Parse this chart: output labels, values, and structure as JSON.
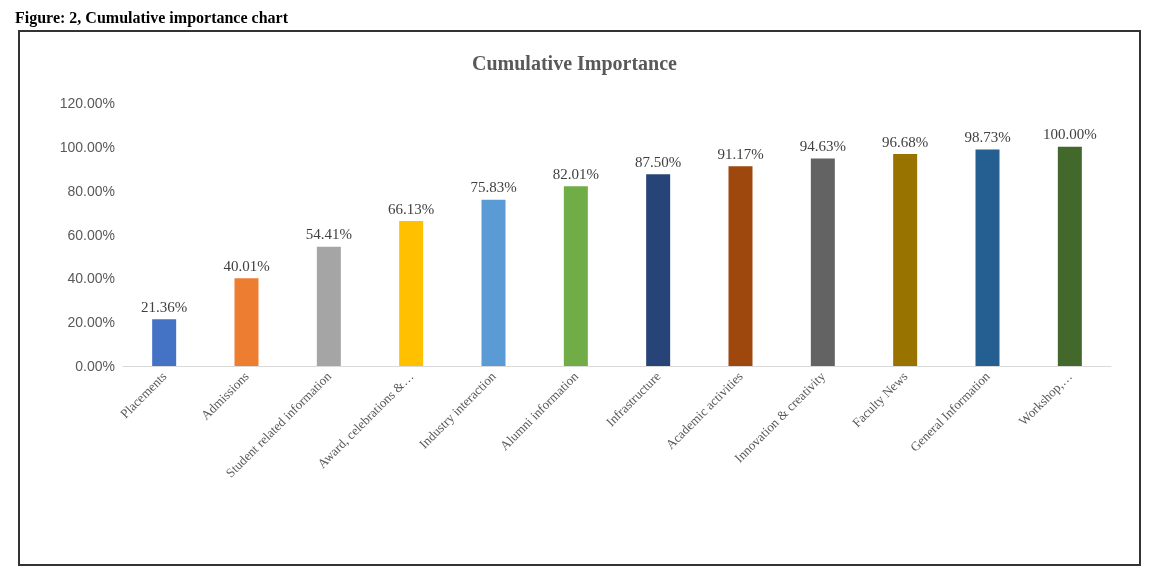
{
  "chart_data": {
    "type": "bar",
    "title": "Cumulative Importance",
    "subtitle": "Figure: 2, Cumulative importance chart",
    "categories": [
      "Placements",
      "Admissions",
      "Student related information",
      "Award, celebrations &…",
      "Industry interaction",
      "Alumni information",
      "Infrastructure",
      "Academic activities",
      "Innovation & creativity",
      "Faculty News",
      "General Information",
      "Workshop,…"
    ],
    "values": [
      21.36,
      40.01,
      54.41,
      66.13,
      75.83,
      82.01,
      87.5,
      91.17,
      94.63,
      96.68,
      98.73,
      100
    ],
    "colors": [
      "#4472c4",
      "#ed7d31",
      "#a5a5a5",
      "#ffc000",
      "#5b9bd5",
      "#70ad47",
      "#264478",
      "#9e480e",
      "#636363",
      "#997300",
      "#255e91",
      "#43682b"
    ],
    "value_labels": [
      "21.36%",
      "40.01%",
      "54.41%",
      "66.13%",
      "75.83%",
      "82.01%",
      "87.50%",
      "91.17%",
      "94.63%",
      "96.68%",
      "98.73%",
      "100.00%"
    ],
    "ylim": [
      0,
      120
    ],
    "yticks": [
      {
        "value": 0,
        "label": "0.00%"
      },
      {
        "value": 20,
        "label": "20.00%"
      },
      {
        "value": 40,
        "label": "40.00%"
      },
      {
        "value": 60,
        "label": "60.00%"
      },
      {
        "value": 80,
        "label": "80.00%"
      },
      {
        "value": 100,
        "label": "100.00%"
      },
      {
        "value": 120,
        "label": "120.00%"
      }
    ],
    "grid": false
  }
}
